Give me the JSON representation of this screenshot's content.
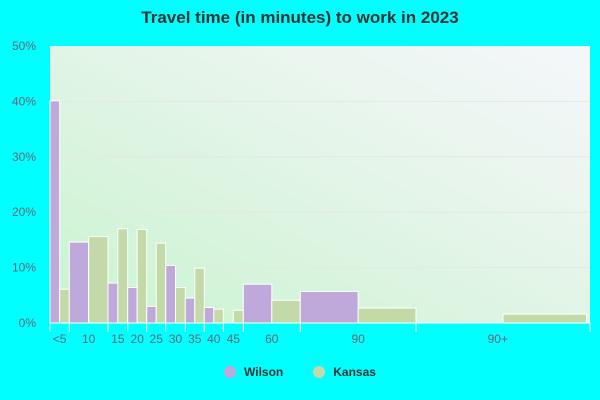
{
  "chart_data": {
    "type": "bar",
    "title": "Travel time (in minutes) to work in 2023",
    "xlabel": "",
    "ylabel": "",
    "ylim": [
      0,
      50
    ],
    "yticks": [
      "0%",
      "10%",
      "20%",
      "30%",
      "40%",
      "50%"
    ],
    "categories": [
      "<5",
      "10",
      "15",
      "20",
      "25",
      "30",
      "35",
      "40",
      "45",
      "60",
      "90",
      "90+"
    ],
    "bin_widths_minutes": [
      5,
      10,
      5,
      5,
      5,
      5,
      5,
      5,
      5,
      15,
      30,
      45
    ],
    "grid": true,
    "legend_position": "bottom",
    "series": [
      {
        "name": "Wilson",
        "color": "#bea9da",
        "values": [
          40.1,
          14.6,
          7.2,
          6.4,
          3.0,
          10.4,
          4.5,
          2.8,
          0,
          7.0,
          5.7,
          0
        ]
      },
      {
        "name": "Kansas",
        "color": "#c4d9a8",
        "values": [
          6.1,
          15.6,
          17.0,
          16.9,
          14.4,
          6.4,
          9.9,
          2.5,
          2.3,
          4.1,
          2.7,
          1.6
        ]
      }
    ]
  }
}
